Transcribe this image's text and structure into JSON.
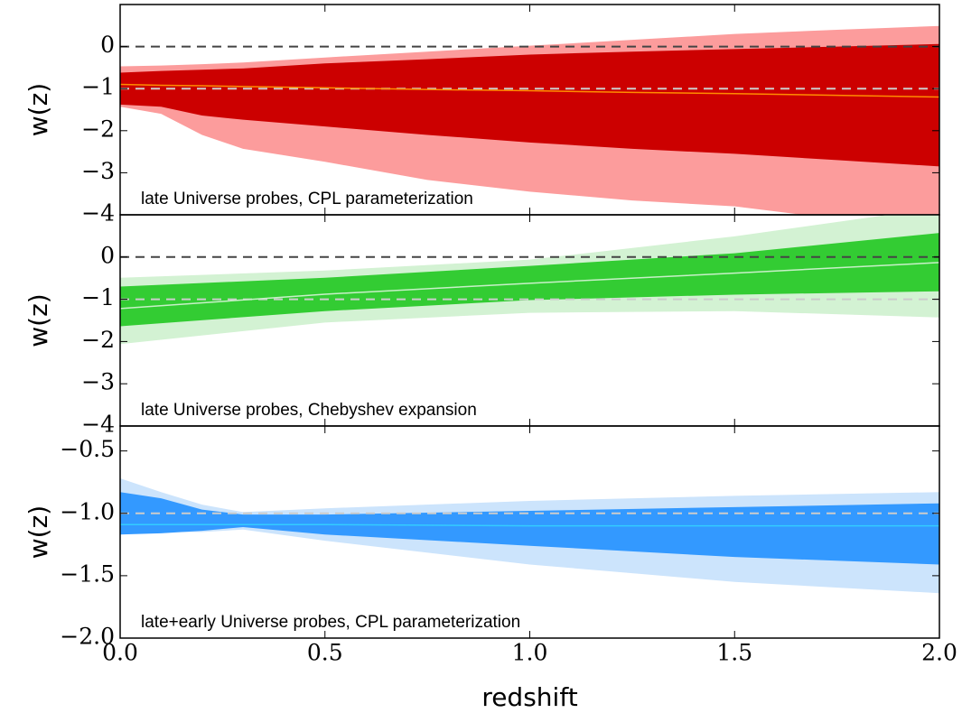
{
  "chart_data": [
    {
      "type": "band",
      "y_label": "w(z)",
      "annotation": "late Universe probes, CPL parameterization",
      "x": [
        0,
        0.1,
        0.2,
        0.3,
        0.5,
        0.75,
        1.0,
        1.25,
        1.5,
        1.75,
        2.0
      ],
      "bands": [
        {
          "color": "#fc9c9c",
          "upper": [
            -0.47,
            -0.45,
            -0.42,
            -0.38,
            -0.26,
            -0.12,
            0.02,
            0.16,
            0.3,
            0.4,
            0.49
          ],
          "lower": [
            -1.43,
            -1.6,
            -2.1,
            -2.43,
            -2.74,
            -3.17,
            -3.45,
            -3.66,
            -3.8,
            -4.1,
            -4.3
          ]
        },
        {
          "color": "#cc0000",
          "upper": [
            -0.62,
            -0.58,
            -0.55,
            -0.52,
            -0.4,
            -0.3,
            -0.19,
            -0.12,
            -0.06,
            0.0,
            0.06
          ],
          "lower": [
            -1.38,
            -1.43,
            -1.64,
            -1.74,
            -1.9,
            -2.1,
            -2.28,
            -2.43,
            -2.55,
            -2.7,
            -2.85
          ]
        }
      ],
      "line": {
        "color": "#ff8c00",
        "values": [
          -0.9,
          -0.92,
          -0.93,
          -0.95,
          -0.98,
          -1.02,
          -1.05,
          -1.09,
          -1.12,
          -1.16,
          -1.2
        ]
      },
      "hlines": [
        {
          "y": 0,
          "color": "#444444"
        },
        {
          "y": -1,
          "color": "#cccccc"
        }
      ],
      "xlim": [
        0,
        2
      ],
      "xticks": [
        0,
        0.5,
        1,
        1.5,
        2
      ],
      "ylim": [
        -4,
        1
      ],
      "yticks": [
        {
          "value": -4,
          "label": "−4"
        },
        {
          "value": -3,
          "label": "−3"
        },
        {
          "value": -2,
          "label": "−2"
        },
        {
          "value": -1,
          "label": "−1"
        },
        0
      ]
    },
    {
      "type": "band",
      "y_label": "w(z)",
      "annotation": "late Universe probes, Chebyshev expansion",
      "x": [
        0,
        0.5,
        1.0,
        1.5,
        2.0
      ],
      "bands": [
        {
          "color": "#d3f2d3",
          "upper": [
            -0.49,
            -0.32,
            -0.06,
            0.49,
            1.17
          ],
          "lower": [
            -2.06,
            -1.55,
            -1.32,
            -1.28,
            -1.43
          ]
        },
        {
          "color": "#33cc33",
          "upper": [
            -0.7,
            -0.49,
            -0.21,
            0.09,
            0.57
          ],
          "lower": [
            -1.64,
            -1.28,
            -1.02,
            -0.89,
            -0.81
          ]
        }
      ],
      "line": {
        "color": "#c8f0c8",
        "values": [
          -1.22,
          -0.88,
          -0.62,
          -0.38,
          -0.13
        ]
      },
      "hlines": [
        {
          "y": 0,
          "color": "#444444"
        },
        {
          "y": -1,
          "color": "#cccccc"
        }
      ],
      "xlim": [
        0,
        2
      ],
      "xticks": [
        0,
        0.5,
        1,
        1.5,
        2
      ],
      "ylim": [
        -4,
        1
      ],
      "yticks": [
        {
          "value": -4,
          "label": "−4"
        },
        {
          "value": -3,
          "label": "−3"
        },
        {
          "value": -2,
          "label": "−2"
        },
        {
          "value": -1,
          "label": "−1"
        },
        0
      ]
    },
    {
      "type": "band",
      "y_label": "w(z)",
      "annotation": "late+early Universe probes, CPL parameterization",
      "x_label": "redshift",
      "x": [
        0,
        0.1,
        0.2,
        0.3,
        0.5,
        1.0,
        1.5,
        2.0
      ],
      "bands": [
        {
          "color": "#cce4fc",
          "upper": [
            -0.72,
            -0.83,
            -0.93,
            -0.99,
            -0.96,
            -0.9,
            -0.86,
            -0.83
          ],
          "lower": [
            -1.15,
            -1.15,
            -1.15,
            -1.13,
            -1.22,
            -1.41,
            -1.55,
            -1.64
          ]
        },
        {
          "color": "#3399ff",
          "upper": [
            -0.83,
            -0.88,
            -0.97,
            -1.01,
            -1.01,
            -0.98,
            -0.95,
            -0.92
          ],
          "lower": [
            -1.17,
            -1.16,
            -1.14,
            -1.11,
            -1.17,
            -1.26,
            -1.35,
            -1.41
          ]
        }
      ],
      "line": {
        "color": "#33ccff",
        "values": [
          -1.09,
          -1.09,
          -1.09,
          -1.09,
          -1.09,
          -1.1,
          -1.1,
          -1.1
        ]
      },
      "hlines": [
        {
          "y": -1,
          "color": "#cccccc"
        }
      ],
      "xlim": [
        0,
        2
      ],
      "xticks": [
        {
          "value": 0,
          "label": "0.0"
        },
        {
          "value": 0.5,
          "label": "0.5"
        },
        {
          "value": 1,
          "label": "1.0"
        },
        {
          "value": 1.5,
          "label": "1.5"
        },
        {
          "value": 2,
          "label": "2.0"
        }
      ],
      "ylim": [
        -2,
        -0.3
      ],
      "yticks": [
        {
          "value": -2,
          "label": "−2.0"
        },
        {
          "value": -1.5,
          "label": "−1.5"
        },
        {
          "value": -1,
          "label": "−1.0"
        },
        {
          "value": -0.5,
          "label": "−0.5"
        }
      ]
    }
  ]
}
